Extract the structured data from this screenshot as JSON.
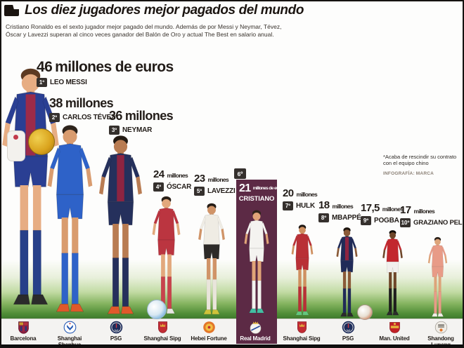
{
  "header": {
    "title": "Los diez jugadores mejor pagados del mundo",
    "subtitle_line1": "Cristiano Ronaldo es el sexto jugador mejor pagado del mundo. Además de por Messi y Neymar, Tévez,",
    "subtitle_line2": "Óscar y Lavezzi superan al cinco veces ganador del Balón de Oro y actual The Best en salario anual."
  },
  "footnote": {
    "line1": "*Acaba de rescindir su contrato",
    "line2": "con el equipo chino",
    "credit": "INFOGRAFÍA: MARCA"
  },
  "players": [
    {
      "rank": "1º",
      "value": "46",
      "unit": "millones de euros",
      "name": "LEO MESSI",
      "club": "Barcelona",
      "crest": "barcelona",
      "kit": {
        "skin": "#e7ad83",
        "hair": "#5d3a22",
        "shirt": "#2a3f93",
        "stripe": "#9c2b49",
        "shorts": "#2a3f93",
        "socks": "#274089",
        "boots": "#2b2b2b"
      }
    },
    {
      "rank": "2º",
      "value": "38",
      "unit": "millones",
      "name": "CARLOS TÉVEZ*",
      "club": "Shanghai Shenhua",
      "crest": "shenhua",
      "kit": {
        "skin": "#d99c6f",
        "hair": "#2e241c",
        "shirt": "#2e62c8",
        "stripe": "",
        "shorts": "#2e62c8",
        "socks": "#2e62c8",
        "boots": "#e0592b"
      }
    },
    {
      "rank": "3º",
      "value": "36",
      "unit": "millones",
      "name": "NEYMAR",
      "club": "PSG",
      "crest": "psg",
      "kit": {
        "skin": "#b97c52",
        "hair": "#241b14",
        "shirt": "#25305c",
        "stripe": "#8e2441",
        "shorts": "#25305c",
        "socks": "#25305c",
        "boots": "#e0592b"
      }
    },
    {
      "rank": "4º",
      "value": "24",
      "unit": "millones",
      "name": "ÓSCAR",
      "club": "Shanghai Sipg",
      "crest": "sipg",
      "kit": {
        "skin": "#e2a87c",
        "hair": "#2a2018",
        "shirt": "#bb3540",
        "stripe": "",
        "shorts": "#bb3540",
        "socks": "#c8434c",
        "boots": "#e8e6e2"
      }
    },
    {
      "rank": "5º",
      "value": "23",
      "unit": "millones",
      "name": "LAVEZZI",
      "club": "Hebei Fortune",
      "crest": "hebei",
      "kit": {
        "skin": "#d09468",
        "hair": "#241c15",
        "shirt": "#efece4",
        "stripe": "",
        "shorts": "#2d2a28",
        "socks": "#e9e5db",
        "boots": "#cfc33a"
      }
    },
    {
      "rank": "6º",
      "value": "21",
      "unit": "millones de euros",
      "name": "CRISTIANO",
      "club": "Real Madrid",
      "crest": "realmadrid",
      "highlighted": true,
      "kit": {
        "skin": "#e0a478",
        "hair": "#2f241a",
        "shirt": "#f4f3f0",
        "stripe": "",
        "shorts": "#f4f3f0",
        "socks": "#f4f3f0",
        "boots": "#43bfa3"
      }
    },
    {
      "rank": "7º",
      "value": "20",
      "unit": "millones",
      "name": "HULK",
      "club": "Shanghai Sipg",
      "crest": "sipg",
      "kit": {
        "skin": "#cf9060",
        "hair": "#1f1813",
        "shirt": "#b93036",
        "stripe": "",
        "shorts": "#b93036",
        "socks": "#b93036",
        "boots": "#64c67e"
      }
    },
    {
      "rank": "8º",
      "value": "18",
      "unit": "millones",
      "name": "MBAPPÉ",
      "club": "PSG",
      "crest": "psg",
      "kit": {
        "skin": "#8a5a38",
        "hair": "#1c140e",
        "shirt": "#202b58",
        "stripe": "#8e2441",
        "shorts": "#202b58",
        "socks": "#202b58",
        "boots": "#2b2b2b"
      }
    },
    {
      "rank": "9º",
      "value": "17,5",
      "unit": "millones",
      "name": "POGBA",
      "club": "Man. United",
      "crest": "manutd",
      "kit": {
        "skin": "#6e4629",
        "hair": "#120d09",
        "shirt": "#c2272e",
        "stripe": "",
        "shorts": "#f1efec",
        "socks": "#1d1d1d",
        "boots": "#2b2b2b"
      }
    },
    {
      "rank": "10º",
      "value": "17",
      "unit": "millones",
      "name": "GRAZIANO PELLÉ",
      "club": "Shandong Luneng",
      "crest": "shandong",
      "kit": {
        "skin": "#dda47a",
        "hair": "#2a211a",
        "shirt": "#e89b87",
        "stripe": "",
        "shorts": "#e89b87",
        "socks": "#e89b87",
        "boots": "#efece6"
      }
    }
  ],
  "colors": {
    "highlight_purple": "#5c2a45",
    "badge_dark": "#35302d",
    "grass_green": "#4f8c36",
    "strip_bg": "#f4f3f1",
    "text_dark": "#221c18"
  },
  "chart_data": {
    "type": "bar",
    "title": "Los diez jugadores mejor pagados del mundo",
    "categories": [
      "Leo Messi",
      "Carlos Tévez",
      "Neymar",
      "Óscar",
      "Lavezzi",
      "Cristiano",
      "Hulk",
      "Mbappé",
      "Pogba",
      "Graziano Pellé"
    ],
    "values": [
      46,
      38,
      36,
      24,
      23,
      21,
      20,
      18,
      17.5,
      17
    ],
    "unit": "millones de euros (salario anual)",
    "clubs": [
      "Barcelona",
      "Shanghai Shenhua",
      "PSG",
      "Shanghai Sipg",
      "Hebei Fortune",
      "Real Madrid",
      "Shanghai Sipg",
      "PSG",
      "Man. United",
      "Shandong Luneng"
    ],
    "highlighted_category": "Cristiano"
  }
}
